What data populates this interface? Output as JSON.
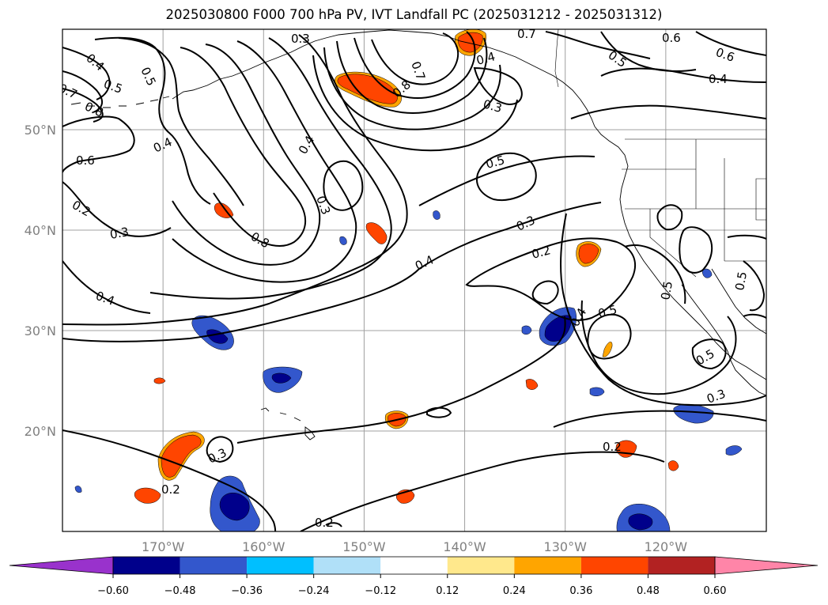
{
  "title": "2025030800 F000 700 hPa PV, IVT Landfall PC (2025031212 - 2025031312)",
  "map": {
    "projection": "cylindrical",
    "lon_range": [
      -180,
      -110
    ],
    "lat_range": [
      10,
      60
    ],
    "lon_ticks": [
      -170,
      -160,
      -150,
      -140,
      -130,
      -120
    ],
    "lon_tick_labels": [
      "170°W",
      "160°W",
      "150°W",
      "140°W",
      "130°W",
      "120°W"
    ],
    "lat_ticks": [
      20,
      30,
      40,
      50
    ],
    "lat_tick_labels": [
      "20°N",
      "30°N",
      "40°N",
      "50°N"
    ],
    "gridlines": true,
    "contour_labels": [
      "0.3",
      "0.7",
      "0.6",
      "0.5",
      "0.6",
      "0.4",
      "0.4",
      "0.5",
      "0.7",
      "0.8",
      "0.5",
      "0.8",
      "0.4",
      "0.7",
      "0.3",
      "0.4",
      "0.6",
      "0.5",
      "0.2",
      "0.3",
      "0.8",
      "0.3",
      "0.4",
      "0.3",
      "0.2",
      "0.4",
      "0.4",
      "0.5",
      "0.5",
      "0.4",
      "0.5",
      "0.5",
      "0.3",
      "0.2",
      "0.3",
      "0.2",
      "0.2"
    ]
  },
  "colorbar": {
    "levels": [
      -0.6,
      -0.48,
      -0.36,
      -0.24,
      -0.12,
      0.12,
      0.24,
      0.36,
      0.48,
      0.6
    ],
    "tick_labels": [
      "−0.60",
      "−0.48",
      "−0.36",
      "−0.24",
      "−0.12",
      "0.12",
      "0.24",
      "0.36",
      "0.48",
      "0.60"
    ],
    "colors": [
      "#9932cc",
      "#00008b",
      "#3357cc",
      "#00bfff",
      "#b0e0f8",
      "#ffffff",
      "#ffe88c",
      "#ffa500",
      "#ff4500",
      "#b22222",
      "#ff85a8"
    ],
    "extend": "both"
  }
}
